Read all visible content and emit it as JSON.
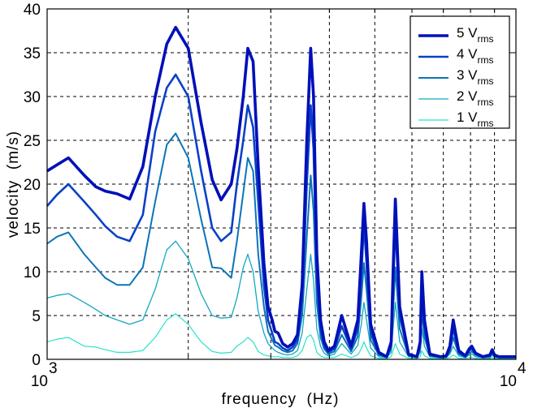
{
  "chart_data": {
    "type": "line",
    "title": "",
    "xlabel": "frequency  (Hz)",
    "ylabel": "velocity  (m/s)",
    "xscale": "log",
    "xlim": [
      1000,
      10000
    ],
    "ylim": [
      0,
      40
    ],
    "grid": true,
    "legend_position": "upper right",
    "x_tick_labels": [
      {
        "base": "10",
        "exp": "3",
        "value": 1000
      },
      {
        "base": "10",
        "exp": "4",
        "value": 10000
      }
    ],
    "y_ticks": [
      0,
      5,
      10,
      15,
      20,
      25,
      30,
      35,
      40
    ],
    "x_grid": [
      2000,
      3000,
      4000,
      5000,
      6000,
      7000,
      8000,
      9000
    ],
    "legend": [
      {
        "main": "5 V",
        "sub": "rms"
      },
      {
        "main": "4 V",
        "sub": "rms"
      },
      {
        "main": "3 V",
        "sub": "rms"
      },
      {
        "main": "2 V",
        "sub": "rms"
      },
      {
        "main": "1 V",
        "sub": "rms"
      }
    ],
    "series": [
      {
        "name": "5 Vrms",
        "color": "#0010b8",
        "width": 3.6,
        "x": [
          1000,
          1050,
          1110,
          1200,
          1270,
          1330,
          1410,
          1500,
          1600,
          1700,
          1800,
          1880,
          2000,
          2130,
          2250,
          2350,
          2470,
          2540,
          2620,
          2680,
          2750,
          2820,
          2900,
          2960,
          3020,
          3060,
          3110,
          3180,
          3260,
          3340,
          3420,
          3500,
          3580,
          3650,
          3700,
          3760,
          3830,
          3900,
          3980,
          4100,
          4250,
          4450,
          4600,
          4680,
          4740,
          4800,
          4900,
          5100,
          5300,
          5420,
          5470,
          5530,
          5650,
          5900,
          6150,
          6250,
          6300,
          6380,
          6550,
          6900,
          7100,
          7230,
          7350,
          7550,
          7800,
          7950,
          8050,
          8200,
          8500,
          8800,
          8900,
          9000,
          9200,
          9500,
          10000
        ],
        "y": [
          21.5,
          22.2,
          23.0,
          21.0,
          19.7,
          19.2,
          18.9,
          18.3,
          22.0,
          30.0,
          36.0,
          37.9,
          35.5,
          27.0,
          20.5,
          18.2,
          20.0,
          24.0,
          30.0,
          35.5,
          34.0,
          22.0,
          11.0,
          6.0,
          4.5,
          3.2,
          3.0,
          1.8,
          1.4,
          1.8,
          2.8,
          8.5,
          25.0,
          35.5,
          30.0,
          12.0,
          4.5,
          2.0,
          1.0,
          1.5,
          5.0,
          1.5,
          4.5,
          12.0,
          17.8,
          13.5,
          4.0,
          0.8,
          0.3,
          2.0,
          10.0,
          18.3,
          6.0,
          0.6,
          0.3,
          2.0,
          10.0,
          4.5,
          0.6,
          0.3,
          0.4,
          1.5,
          4.5,
          1.0,
          0.4,
          1.2,
          1.5,
          0.7,
          0.3,
          0.5,
          1.1,
          0.5,
          0.3,
          0.3,
          0.3
        ]
      },
      {
        "name": "4 Vrms",
        "color": "#0a40c8",
        "width": 2.6,
        "x": [
          1000,
          1050,
          1110,
          1200,
          1270,
          1330,
          1410,
          1500,
          1600,
          1700,
          1800,
          1880,
          2000,
          2130,
          2250,
          2350,
          2470,
          2540,
          2620,
          2680,
          2750,
          2820,
          2900,
          2960,
          3020,
          3060,
          3110,
          3180,
          3260,
          3340,
          3420,
          3500,
          3580,
          3650,
          3700,
          3760,
          3830,
          3900,
          3980,
          4100,
          4250,
          4450,
          4600,
          4680,
          4740,
          4800,
          4900,
          5100,
          5300,
          5420,
          5470,
          5530,
          5650,
          5900,
          6150,
          6250,
          6300,
          6380,
          6550,
          6900,
          7100,
          7230,
          7350,
          7550,
          7800,
          7950,
          8050,
          8200,
          8500,
          8800,
          8900,
          9000,
          9200,
          9500,
          10000
        ],
        "y": [
          17.5,
          18.8,
          20.0,
          18.0,
          16.5,
          15.2,
          14.0,
          13.5,
          16.5,
          26.0,
          31.0,
          32.5,
          30.0,
          21.5,
          15.0,
          13.5,
          14.5,
          20.0,
          25.0,
          29.0,
          26.5,
          18.0,
          8.5,
          4.5,
          3.0,
          2.0,
          1.8,
          1.3,
          1.0,
          1.4,
          2.2,
          7.0,
          20.0,
          29.0,
          24.0,
          9.0,
          3.5,
          1.5,
          0.8,
          1.2,
          3.8,
          1.2,
          3.5,
          9.5,
          15.5,
          11.0,
          3.0,
          0.6,
          0.3,
          1.5,
          8.0,
          15.5,
          5.0,
          0.5,
          0.3,
          1.6,
          8.0,
          3.5,
          0.5,
          0.3,
          0.3,
          1.2,
          3.5,
          0.8,
          0.3,
          1.0,
          1.2,
          0.6,
          0.3,
          0.4,
          0.9,
          0.4,
          0.3,
          0.3,
          0.3
        ]
      },
      {
        "name": "3 Vrms",
        "color": "#0b74b8",
        "width": 2.0,
        "x": [
          1000,
          1050,
          1110,
          1200,
          1270,
          1330,
          1410,
          1500,
          1600,
          1700,
          1800,
          1880,
          2000,
          2130,
          2250,
          2350,
          2470,
          2540,
          2620,
          2680,
          2750,
          2820,
          2900,
          2960,
          3020,
          3060,
          3110,
          3180,
          3260,
          3340,
          3420,
          3500,
          3580,
          3650,
          3700,
          3760,
          3830,
          3900,
          3980,
          4100,
          4250,
          4450,
          4600,
          4680,
          4740,
          4800,
          4900,
          5100,
          5300,
          5420,
          5470,
          5530,
          5650,
          5900,
          6150,
          6250,
          6300,
          6380,
          6550,
          6900,
          7100,
          7230,
          7350,
          7550,
          7800,
          7950,
          8050,
          8200,
          8500,
          8800,
          8900,
          9000,
          9200,
          9500,
          10000
        ],
        "y": [
          13.2,
          14.0,
          14.5,
          12.0,
          10.5,
          9.3,
          8.5,
          8.5,
          10.5,
          18.0,
          24.5,
          25.8,
          23.0,
          16.0,
          10.5,
          10.4,
          9.3,
          13.5,
          19.0,
          23.0,
          21.5,
          12.0,
          6.0,
          3.2,
          2.2,
          1.6,
          1.4,
          1.0,
          0.8,
          1.0,
          1.8,
          5.0,
          14.0,
          21.0,
          17.0,
          6.5,
          2.5,
          1.2,
          0.6,
          0.9,
          2.8,
          0.9,
          2.6,
          7.0,
          11.0,
          8.0,
          2.2,
          0.5,
          0.3,
          1.2,
          5.5,
          10.5,
          3.5,
          0.4,
          0.2,
          1.2,
          5.5,
          2.5,
          0.4,
          0.2,
          0.3,
          0.9,
          2.5,
          0.6,
          0.3,
          0.7,
          0.9,
          0.5,
          0.2,
          0.3,
          0.7,
          0.3,
          0.2,
          0.2,
          0.2
        ]
      },
      {
        "name": "2 Vrms",
        "color": "#12a8c0",
        "width": 1.3,
        "x": [
          1000,
          1050,
          1110,
          1200,
          1270,
          1330,
          1410,
          1500,
          1600,
          1700,
          1800,
          1880,
          2000,
          2130,
          2250,
          2350,
          2470,
          2540,
          2620,
          2680,
          2750,
          2820,
          2900,
          2960,
          3020,
          3060,
          3110,
          3180,
          3260,
          3340,
          3420,
          3500,
          3580,
          3650,
          3700,
          3760,
          3830,
          3900,
          3980,
          4100,
          4250,
          4450,
          4600,
          4680,
          4740,
          4800,
          4900,
          5100,
          5300,
          5420,
          5470,
          5530,
          5650,
          5900,
          6150,
          6250,
          6300,
          6380,
          6550,
          6900,
          7100,
          7230,
          7350,
          7550,
          7800,
          7950,
          8050,
          8200,
          8500,
          8800,
          8900,
          9000,
          9200,
          9500,
          10000
        ],
        "y": [
          7.0,
          7.3,
          7.5,
          6.5,
          5.7,
          5.0,
          4.5,
          4.0,
          4.5,
          8.0,
          12.5,
          13.5,
          11.5,
          7.5,
          5.0,
          4.7,
          4.8,
          7.0,
          10.5,
          12.0,
          10.0,
          5.5,
          3.0,
          1.8,
          1.3,
          1.0,
          0.8,
          0.6,
          0.5,
          0.6,
          1.0,
          3.0,
          8.0,
          12.0,
          9.0,
          3.5,
          1.5,
          0.7,
          0.4,
          0.6,
          1.8,
          0.6,
          1.6,
          4.0,
          6.5,
          4.5,
          1.3,
          0.3,
          0.2,
          0.8,
          3.5,
          6.5,
          2.0,
          0.3,
          0.2,
          0.8,
          3.5,
          1.5,
          0.3,
          0.2,
          0.2,
          0.6,
          1.5,
          0.4,
          0.2,
          0.5,
          0.6,
          0.3,
          0.2,
          0.2,
          0.5,
          0.2,
          0.2,
          0.2,
          0.2
        ]
      },
      {
        "name": "1 Vrms",
        "color": "#27e3c8",
        "width": 1.2,
        "x": [
          1000,
          1050,
          1110,
          1200,
          1270,
          1330,
          1410,
          1500,
          1600,
          1700,
          1800,
          1880,
          2000,
          2130,
          2250,
          2350,
          2470,
          2540,
          2620,
          2680,
          2750,
          2820,
          2900,
          2960,
          3020,
          3060,
          3110,
          3180,
          3260,
          3340,
          3420,
          3500,
          3580,
          3650,
          3700,
          3760,
          3830,
          3900,
          3980,
          4100,
          4250,
          4450,
          4600,
          4680,
          4740,
          4800,
          4900,
          5100,
          5300,
          5420,
          5470,
          5530,
          5650,
          5900,
          6150,
          6250,
          6300,
          6380,
          6550,
          6900,
          7100,
          7230,
          7350,
          7550,
          7800,
          7950,
          8050,
          8200,
          8500,
          8800,
          8900,
          9000,
          9200,
          9500,
          10000
        ],
        "y": [
          2.0,
          2.3,
          2.5,
          1.5,
          1.4,
          1.1,
          0.8,
          0.8,
          1.0,
          2.5,
          4.5,
          5.2,
          4.0,
          2.0,
          0.9,
          0.7,
          0.8,
          1.5,
          2.0,
          2.5,
          2.0,
          0.9,
          0.5,
          0.4,
          0.3,
          0.3,
          0.3,
          0.2,
          0.2,
          0.2,
          0.4,
          1.0,
          2.5,
          2.8,
          2.2,
          0.8,
          0.4,
          0.2,
          0.2,
          0.2,
          0.6,
          0.2,
          0.5,
          1.2,
          2.0,
          1.3,
          0.4,
          0.1,
          0.1,
          0.3,
          1.0,
          1.8,
          0.6,
          0.1,
          0.1,
          0.3,
          1.0,
          0.4,
          0.1,
          0.1,
          0.1,
          0.2,
          0.5,
          0.1,
          0.1,
          0.2,
          0.2,
          0.1,
          0.1,
          0.1,
          0.2,
          0.1,
          0.1,
          0.1,
          0.1
        ]
      }
    ]
  }
}
